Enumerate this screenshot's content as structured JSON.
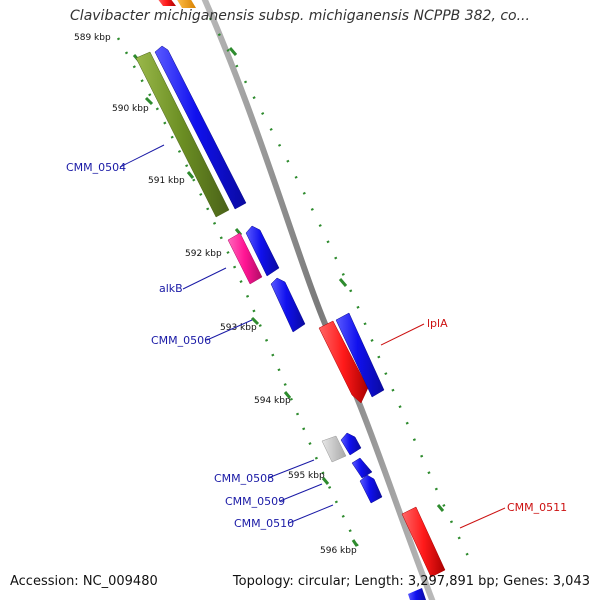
{
  "title": "Clavibacter michiganensis subsp. michiganensis NCPPB 382, co...",
  "footer": {
    "accession": "Accession: NC_009480",
    "summary": "Topology: circular; Length: 3,297,891 bp; Genes: 3,043"
  },
  "ticks": [
    {
      "label": "589 kbp",
      "pos_kbp": 589
    },
    {
      "label": "590 kbp",
      "pos_kbp": 590
    },
    {
      "label": "591 kbp",
      "pos_kbp": 591
    },
    {
      "label": "592 kbp",
      "pos_kbp": 592
    },
    {
      "label": "593 kbp",
      "pos_kbp": 593
    },
    {
      "label": "594 kbp",
      "pos_kbp": 594
    },
    {
      "label": "595 kbp",
      "pos_kbp": 595
    },
    {
      "label": "596 kbp",
      "pos_kbp": 596
    }
  ],
  "gene_labels": [
    {
      "text": "CMM_0504",
      "color": "#1a1aa6"
    },
    {
      "text": "alkB",
      "color": "#1a1aa6"
    },
    {
      "text": "CMM_0506",
      "color": "#1a1aa6"
    },
    {
      "text": "lplA",
      "color": "#cc1111"
    },
    {
      "text": "CMM_0508",
      "color": "#1a1aa6"
    },
    {
      "text": "CMM_0509",
      "color": "#1a1aa6"
    },
    {
      "text": "CMM_0510",
      "color": "#1a1aa6"
    },
    {
      "text": "CMM_0511",
      "color": "#cc1111"
    }
  ],
  "colors": {
    "backbone": "#8c8c8c",
    "gene_blue": "#1a1ae6",
    "gene_green": "#6b8e23",
    "gene_pink": "#ff1493",
    "gene_red": "#ff1a1a",
    "gene_grey": "#c8c8c8",
    "gene_orange": "#ffa500",
    "tick_dots": "#2e8b2e"
  }
}
